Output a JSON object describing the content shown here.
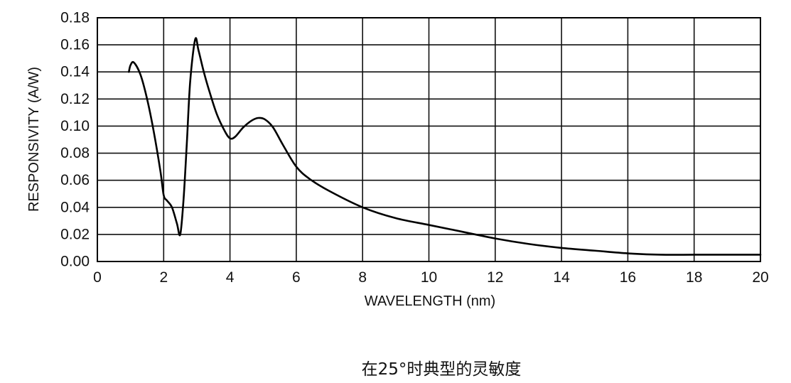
{
  "caption": "在25°时典型的灵敏度",
  "chart_data": {
    "type": "line",
    "xlabel": "WAVELENGTH (nm)",
    "ylabel": "RESPONSIVITY (A/W)",
    "xlim": [
      0,
      20
    ],
    "ylim": [
      0,
      0.18
    ],
    "xticks": [
      "0",
      "2",
      "4",
      "6",
      "8",
      "10",
      "12",
      "14",
      "16",
      "18",
      "20"
    ],
    "yticks": [
      "0.00",
      "0.02",
      "0.04",
      "0.06",
      "0.08",
      "0.10",
      "0.12",
      "0.14",
      "0.16",
      "0.18"
    ],
    "grid": true,
    "line_color": "#000000",
    "series": [
      {
        "x": [
          0.95,
          1.0,
          1.1,
          1.3,
          1.5,
          1.7,
          1.9,
          2.0,
          2.1,
          2.25,
          2.4,
          2.5,
          2.6,
          2.7,
          2.8,
          2.95,
          3.05,
          3.2,
          3.35,
          3.6,
          3.85,
          4.0,
          4.15,
          4.4,
          4.65,
          4.85,
          5.05,
          5.3,
          5.6,
          6.0,
          6.4,
          7.0,
          8.0,
          9.0,
          10.0,
          11.0,
          12.0,
          13.0,
          14.0,
          15.0,
          16.0,
          17.0,
          18.0,
          19.0,
          20.0
        ],
        "y": [
          0.14,
          0.145,
          0.147,
          0.138,
          0.12,
          0.096,
          0.067,
          0.049,
          0.045,
          0.04,
          0.028,
          0.02,
          0.046,
          0.088,
          0.133,
          0.164,
          0.156,
          0.141,
          0.128,
          0.109,
          0.096,
          0.091,
          0.092,
          0.099,
          0.104,
          0.106,
          0.105,
          0.099,
          0.086,
          0.07,
          0.061,
          0.052,
          0.04,
          0.032,
          0.027,
          0.022,
          0.017,
          0.013,
          0.01,
          0.008,
          0.006,
          0.005,
          0.005,
          0.005,
          0.005
        ]
      }
    ]
  }
}
